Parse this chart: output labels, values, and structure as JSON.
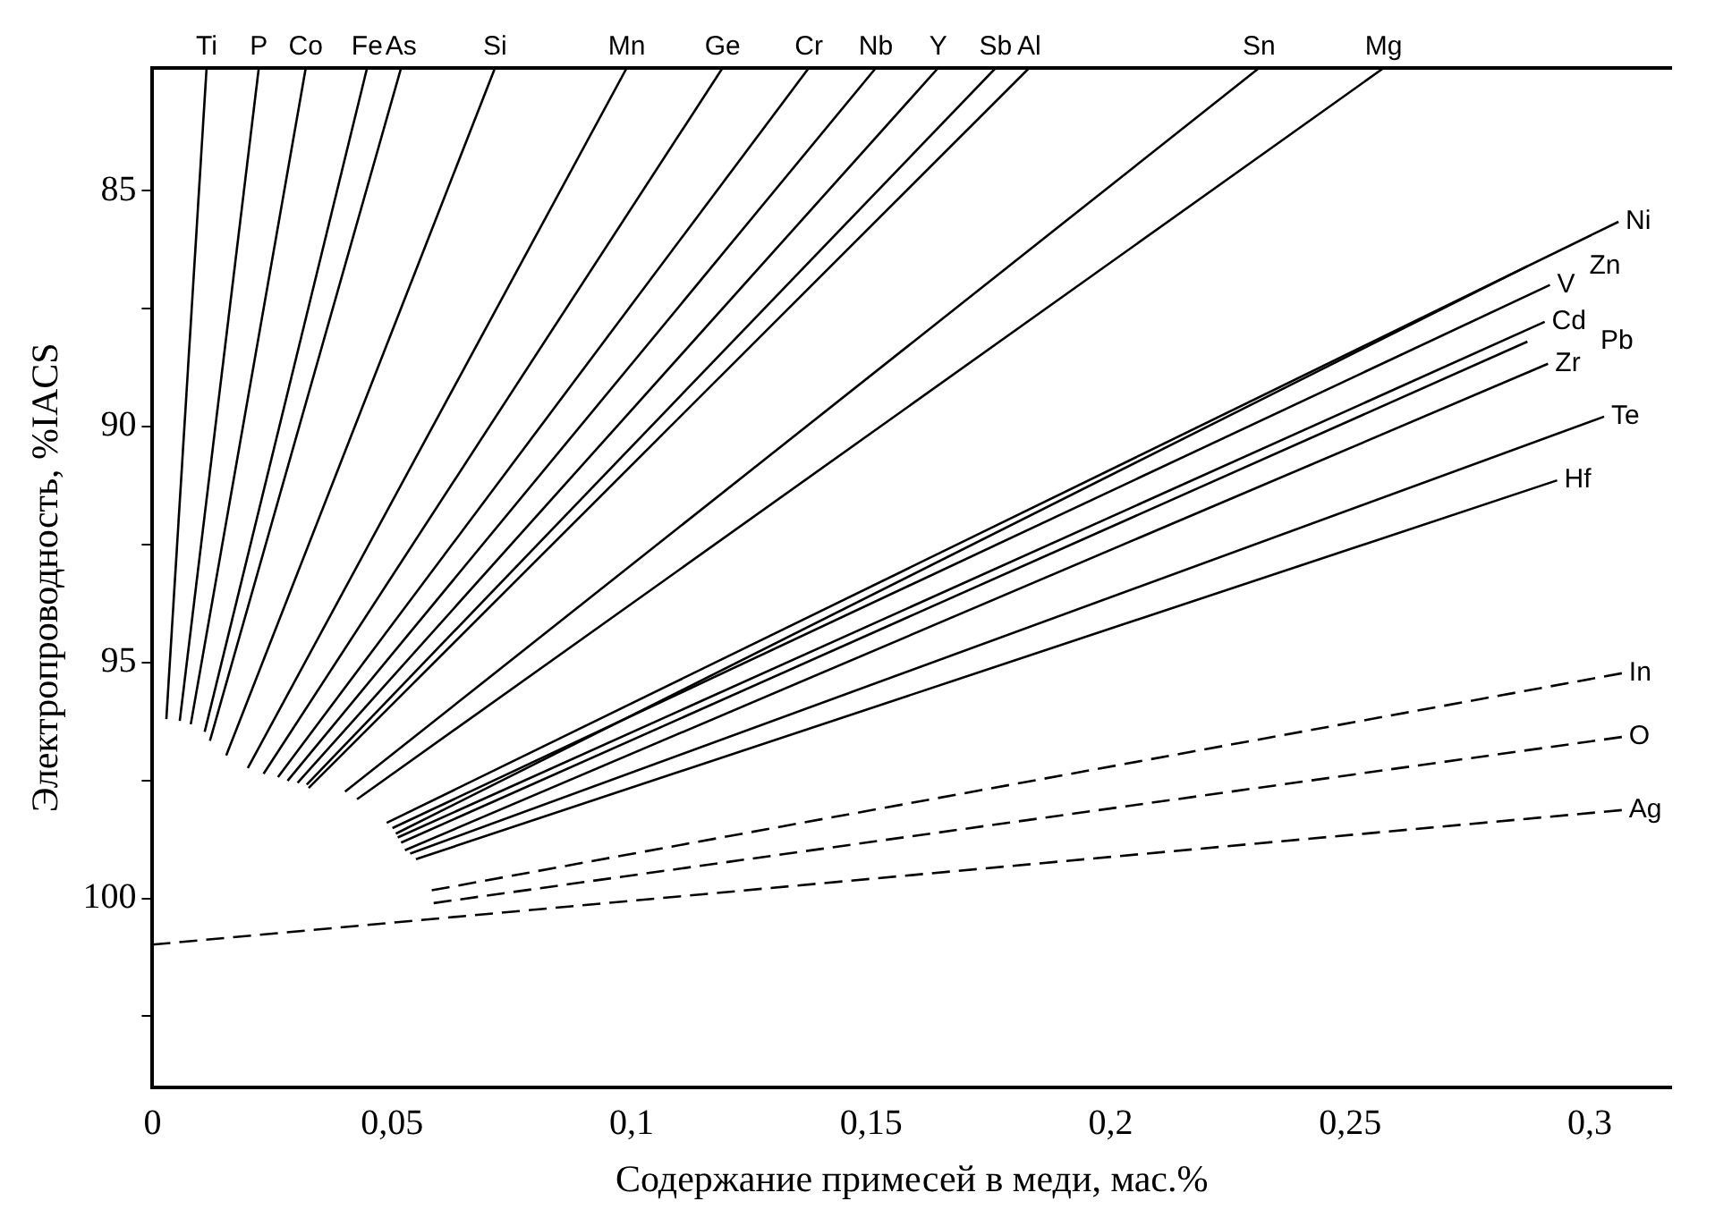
{
  "chart_data": {
    "type": "line",
    "xlabel": "Содержание примесей в меди, мас.%",
    "ylabel": "Электропроводность, %IACS",
    "xlim": [
      0,
      0.317
    ],
    "ylim": [
      104,
      82.4
    ],
    "xticks": [
      0,
      {
        "value": 0.05,
        "label": "0,05"
      },
      {
        "value": 0.1,
        "label": "0,1"
      },
      {
        "value": 0.15,
        "label": "0,15"
      },
      {
        "value": 0.2,
        "label": "0,2"
      },
      {
        "value": 0.25,
        "label": "0,25"
      },
      {
        "value": 0.3,
        "label": "0,3"
      }
    ],
    "yticks": [
      85,
      {
        "value": 87.5,
        "label": null
      },
      90,
      {
        "value": 92.5,
        "label": null
      },
      95,
      {
        "value": 97.5,
        "label": null
      },
      100,
      {
        "value": 102.5,
        "label": null
      }
    ],
    "marker": "none",
    "series": [
      {
        "name": "Ti",
        "color": "#000000",
        "line_style": "solid",
        "x": [
          0.0029,
          0.0113
        ],
        "values": [
          96.2,
          82.4
        ]
      },
      {
        "name": "P",
        "color": "#000000",
        "line_style": "solid",
        "x": [
          0.0057,
          0.0222
        ],
        "values": [
          96.24,
          82.4
        ]
      },
      {
        "name": "Co",
        "color": "#000000",
        "line_style": "solid",
        "x": [
          0.008,
          0.032
        ],
        "values": [
          96.31,
          82.4
        ]
      },
      {
        "name": "Fe",
        "color": "#000000",
        "line_style": "solid",
        "x": [
          0.0109,
          0.0448
        ],
        "values": [
          96.47,
          82.4
        ]
      },
      {
        "name": "As",
        "color": "#000000",
        "line_style": "solid",
        "x": [
          0.012,
          0.0519
        ],
        "values": [
          96.66,
          82.4
        ]
      },
      {
        "name": "Si",
        "color": "#000000",
        "line_style": "solid",
        "x": [
          0.0154,
          0.0715
        ],
        "values": [
          96.97,
          82.4
        ]
      },
      {
        "name": "Mn",
        "color": "#000000",
        "line_style": "solid",
        "x": [
          0.0199,
          0.099
        ],
        "values": [
          97.24,
          82.4
        ]
      },
      {
        "name": "Ge",
        "color": "#000000",
        "line_style": "solid",
        "x": [
          0.0232,
          0.119
        ],
        "values": [
          97.36,
          82.4
        ]
      },
      {
        "name": "Cr",
        "color": "#000000",
        "line_style": "solid",
        "x": [
          0.0262,
          0.137
        ],
        "values": [
          97.43,
          82.4
        ]
      },
      {
        "name": "Nb",
        "color": "#000000",
        "line_style": "solid",
        "x": [
          0.0282,
          0.151
        ],
        "values": [
          97.51,
          82.4
        ]
      },
      {
        "name": "Y",
        "color": "#000000",
        "line_style": "solid",
        "x": [
          0.0303,
          0.164
        ],
        "values": [
          97.55,
          82.4
        ]
      },
      {
        "name": "Sb",
        "color": "#000000",
        "line_style": "solid",
        "x": [
          0.0322,
          0.176
        ],
        "values": [
          97.59,
          82.4
        ]
      },
      {
        "name": "Al",
        "color": "#000000",
        "line_style": "solid",
        "x": [
          0.0326,
          0.183
        ],
        "values": [
          97.66,
          82.4
        ]
      },
      {
        "name": "Sn",
        "color": "#000000",
        "line_style": "solid",
        "x": [
          0.0402,
          0.231
        ],
        "values": [
          97.74,
          82.4
        ]
      },
      {
        "name": "Mg",
        "color": "#000000",
        "line_style": "solid",
        "x": [
          0.0427,
          0.257
        ],
        "values": [
          97.9,
          82.4
        ]
      },
      {
        "name": "Ni",
        "color": "#000000",
        "line_style": "solid",
        "x": [
          0.0489,
          0.306
        ],
        "values": [
          98.4,
          85.66
        ]
      },
      {
        "name": "V",
        "color": "#000000",
        "line_style": "solid",
        "x": [
          0.0501,
          0.2917
        ],
        "values": [
          98.51,
          87.0
        ]
      },
      {
        "name": "Zn",
        "color": "#000000",
        "line_style": "solid",
        "x": [
          0.0508,
          0.287
        ],
        "values": [
          98.63,
          86.6
        ]
      },
      {
        "name": "Cd",
        "color": "#000000",
        "line_style": "solid",
        "x": [
          0.0512,
          0.2906
        ],
        "values": [
          98.71,
          87.78
        ]
      },
      {
        "name": "Pb",
        "color": "#000000",
        "line_style": "solid",
        "x": [
          0.0519,
          0.287
        ],
        "values": [
          98.82,
          88.2
        ]
      },
      {
        "name": "Zr",
        "color": "#000000",
        "line_style": "solid",
        "x": [
          0.0527,
          0.2913
        ],
        "values": [
          98.98,
          88.67
        ]
      },
      {
        "name": "Te",
        "color": "#000000",
        "line_style": "solid",
        "x": [
          0.0538,
          0.303
        ],
        "values": [
          99.05,
          89.79
        ]
      },
      {
        "name": "Hf",
        "color": "#000000",
        "line_style": "solid",
        "x": [
          0.055,
          0.2932
        ],
        "values": [
          99.17,
          91.14
        ]
      },
      {
        "name": "In",
        "color": "#000000",
        "line_style": "dashed",
        "x": [
          0.0583,
          0.3067
        ],
        "values": [
          99.83,
          95.23
        ]
      },
      {
        "name": "O",
        "color": "#000000",
        "line_style": "dashed",
        "x": [
          0.0587,
          0.3067
        ],
        "values": [
          100.1,
          96.58
        ]
      },
      {
        "name": "Ag",
        "color": "#000000",
        "line_style": "dashed",
        "x": [
          0,
          0.3067
        ],
        "values": [
          100.98,
          98.13
        ]
      }
    ]
  }
}
